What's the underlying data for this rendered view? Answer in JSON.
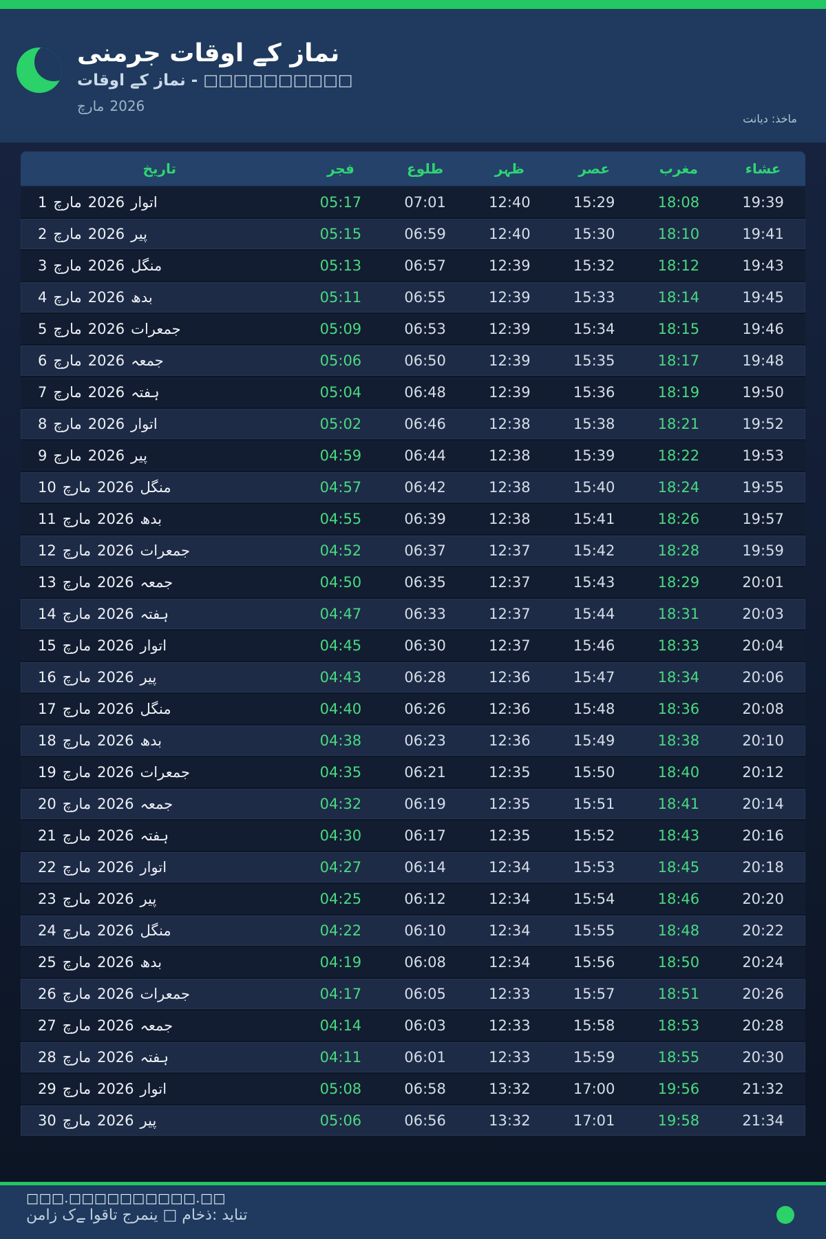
{
  "accent": {
    "green_bar": "#22c763",
    "green_icon": "#2bd169",
    "green_header_text": "#2fd572",
    "green_time_text": "#49da81",
    "navy": "#1f3a5e"
  },
  "header": {
    "title": "نماز کے اوقات جرمنی",
    "subtitle_text": "□□□□□□□□□□ - نماز کے اوقات",
    "month_label": "مارچ",
    "year_label": "2026",
    "source_label": "ماخذ: دیانت",
    "moon_icon": "crescent-moon"
  },
  "table": {
    "headers": [
      "تاریخ",
      "فجر",
      "طلوع",
      "ظہر",
      "عصر",
      "مغرب",
      "عشاء"
    ],
    "month_label": "مارچ",
    "year_label": "2026",
    "rows": [
      {
        "day": "1",
        "weekday": "اتوار",
        "times": [
          "05:17",
          "07:01",
          "12:40",
          "15:29",
          "18:08",
          "19:39"
        ]
      },
      {
        "day": "2",
        "weekday": "پیر",
        "times": [
          "05:15",
          "06:59",
          "12:40",
          "15:30",
          "18:10",
          "19:41"
        ]
      },
      {
        "day": "3",
        "weekday": "منگل",
        "times": [
          "05:13",
          "06:57",
          "12:39",
          "15:32",
          "18:12",
          "19:43"
        ]
      },
      {
        "day": "4",
        "weekday": "بدھ",
        "times": [
          "05:11",
          "06:55",
          "12:39",
          "15:33",
          "18:14",
          "19:45"
        ]
      },
      {
        "day": "5",
        "weekday": "جمعرات",
        "times": [
          "05:09",
          "06:53",
          "12:39",
          "15:34",
          "18:15",
          "19:46"
        ]
      },
      {
        "day": "6",
        "weekday": "جمعہ",
        "times": [
          "05:06",
          "06:50",
          "12:39",
          "15:35",
          "18:17",
          "19:48"
        ]
      },
      {
        "day": "7",
        "weekday": "ہفتہ",
        "times": [
          "05:04",
          "06:48",
          "12:39",
          "15:36",
          "18:19",
          "19:50"
        ]
      },
      {
        "day": "8",
        "weekday": "اتوار",
        "times": [
          "05:02",
          "06:46",
          "12:38",
          "15:38",
          "18:21",
          "19:52"
        ]
      },
      {
        "day": "9",
        "weekday": "پیر",
        "times": [
          "04:59",
          "06:44",
          "12:38",
          "15:39",
          "18:22",
          "19:53"
        ]
      },
      {
        "day": "10",
        "weekday": "منگل",
        "times": [
          "04:57",
          "06:42",
          "12:38",
          "15:40",
          "18:24",
          "19:55"
        ]
      },
      {
        "day": "11",
        "weekday": "بدھ",
        "times": [
          "04:55",
          "06:39",
          "12:38",
          "15:41",
          "18:26",
          "19:57"
        ]
      },
      {
        "day": "12",
        "weekday": "جمعرات",
        "times": [
          "04:52",
          "06:37",
          "12:37",
          "15:42",
          "18:28",
          "19:59"
        ]
      },
      {
        "day": "13",
        "weekday": "جمعہ",
        "times": [
          "04:50",
          "06:35",
          "12:37",
          "15:43",
          "18:29",
          "20:01"
        ]
      },
      {
        "day": "14",
        "weekday": "ہفتہ",
        "times": [
          "04:47",
          "06:33",
          "12:37",
          "15:44",
          "18:31",
          "20:03"
        ]
      },
      {
        "day": "15",
        "weekday": "اتوار",
        "times": [
          "04:45",
          "06:30",
          "12:37",
          "15:46",
          "18:33",
          "20:04"
        ]
      },
      {
        "day": "16",
        "weekday": "پیر",
        "times": [
          "04:43",
          "06:28",
          "12:36",
          "15:47",
          "18:34",
          "20:06"
        ]
      },
      {
        "day": "17",
        "weekday": "منگل",
        "times": [
          "04:40",
          "06:26",
          "12:36",
          "15:48",
          "18:36",
          "20:08"
        ]
      },
      {
        "day": "18",
        "weekday": "بدھ",
        "times": [
          "04:38",
          "06:23",
          "12:36",
          "15:49",
          "18:38",
          "20:10"
        ]
      },
      {
        "day": "19",
        "weekday": "جمعرات",
        "times": [
          "04:35",
          "06:21",
          "12:35",
          "15:50",
          "18:40",
          "20:12"
        ]
      },
      {
        "day": "20",
        "weekday": "جمعہ",
        "times": [
          "04:32",
          "06:19",
          "12:35",
          "15:51",
          "18:41",
          "20:14"
        ]
      },
      {
        "day": "21",
        "weekday": "ہفتہ",
        "times": [
          "04:30",
          "06:17",
          "12:35",
          "15:52",
          "18:43",
          "20:16"
        ]
      },
      {
        "day": "22",
        "weekday": "اتوار",
        "times": [
          "04:27",
          "06:14",
          "12:34",
          "15:53",
          "18:45",
          "20:18"
        ]
      },
      {
        "day": "23",
        "weekday": "پیر",
        "times": [
          "04:25",
          "06:12",
          "12:34",
          "15:54",
          "18:46",
          "20:20"
        ]
      },
      {
        "day": "24",
        "weekday": "منگل",
        "times": [
          "04:22",
          "06:10",
          "12:34",
          "15:55",
          "18:48",
          "20:22"
        ]
      },
      {
        "day": "25",
        "weekday": "بدھ",
        "times": [
          "04:19",
          "06:08",
          "12:34",
          "15:56",
          "18:50",
          "20:24"
        ]
      },
      {
        "day": "26",
        "weekday": "جمعرات",
        "times": [
          "04:17",
          "06:05",
          "12:33",
          "15:57",
          "18:51",
          "20:26"
        ]
      },
      {
        "day": "27",
        "weekday": "جمعہ",
        "times": [
          "04:14",
          "06:03",
          "12:33",
          "15:58",
          "18:53",
          "20:28"
        ]
      },
      {
        "day": "28",
        "weekday": "ہفتہ",
        "times": [
          "04:11",
          "06:01",
          "12:33",
          "15:59",
          "18:55",
          "20:30"
        ]
      },
      {
        "day": "29",
        "weekday": "اتوار",
        "times": [
          "05:08",
          "06:58",
          "13:32",
          "17:00",
          "19:56",
          "21:32"
        ]
      },
      {
        "day": "30",
        "weekday": "پیر",
        "times": [
          "05:06",
          "06:56",
          "13:32",
          "17:01",
          "19:58",
          "21:34"
        ]
      }
    ]
  },
  "footer": {
    "line1": "□□□.□□□□□□□□□□.□□",
    "line2": "نماز کے اوقات جرمنی □ ماخذ: دیانت",
    "status_dot": "green"
  }
}
